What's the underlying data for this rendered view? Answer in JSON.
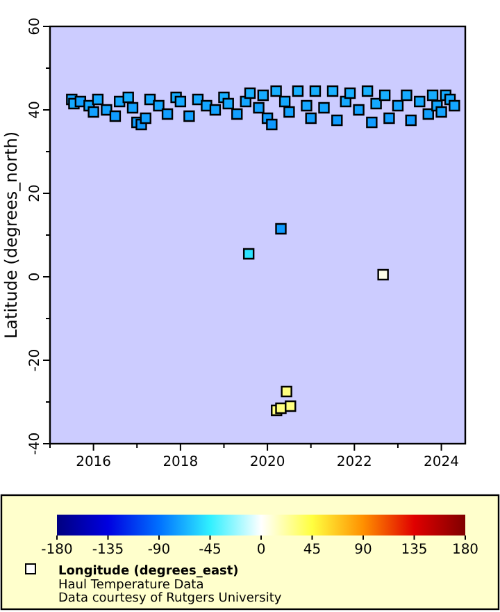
{
  "chart_data": {
    "type": "scatter",
    "ylabel": "Latitude (degrees_north)",
    "clabel": "Longitude (degrees_east)",
    "annotations": [
      "Haul Temperature Data",
      "Data courtesy of Rutgers University"
    ],
    "xlim": [
      2015,
      2024.55
    ],
    "xticks": [
      {
        "value": 2015,
        "label": null
      },
      2016,
      {
        "value": 2017,
        "label": null
      },
      2018,
      {
        "value": 2019,
        "label": null
      },
      2020,
      {
        "value": 2021,
        "label": null
      },
      2022,
      {
        "value": 2023,
        "label": null
      },
      2024
    ],
    "ylim": [
      -40,
      60
    ],
    "yticks": [
      -40,
      {
        "value": -30,
        "label": null
      },
      -20,
      {
        "value": -10,
        "label": null
      },
      0,
      {
        "value": 10,
        "label": null
      },
      20,
      {
        "value": 30,
        "label": null
      },
      40,
      {
        "value": 50,
        "label": null
      },
      60
    ],
    "clim": [
      -180,
      180
    ],
    "cticks": [
      -180,
      -135,
      -90,
      -45,
      0,
      45,
      90,
      135,
      180
    ],
    "marker": "square",
    "grid": false,
    "series": [
      {
        "x": [
          2015.5,
          2015.55,
          2015.7,
          2015.9,
          2016.0,
          2016.1,
          2016.3,
          2016.5,
          2016.6,
          2016.8,
          2016.9,
          2017.0,
          2017.1,
          2017.2,
          2017.3,
          2017.5,
          2017.7,
          2017.9,
          2018.0,
          2018.2,
          2018.4,
          2018.6,
          2018.8,
          2019.0,
          2019.1,
          2019.3,
          2019.5,
          2019.6,
          2019.8,
          2019.9,
          2020.0,
          2020.1,
          2020.2,
          2020.4,
          2020.5,
          2020.7,
          2020.9,
          2021.0,
          2021.1,
          2021.3,
          2021.5,
          2021.6,
          2021.8,
          2021.9,
          2022.1,
          2022.3,
          2022.4,
          2022.5,
          2022.7,
          2022.8,
          2023.0,
          2023.2,
          2023.3,
          2023.5,
          2023.7,
          2023.8,
          2023.9,
          2024.0,
          2024.1,
          2024.2,
          2024.3,
          2019.57,
          2020.31,
          2022.66,
          2020.44,
          2020.21,
          2020.31,
          2020.53
        ],
        "values": [
          42.5,
          41.5,
          42,
          41,
          39.5,
          42.5,
          40,
          38.5,
          42,
          43,
          40.5,
          37,
          36.5,
          38,
          42.5,
          41,
          39,
          43,
          42,
          38.5,
          42.5,
          41,
          40,
          43,
          41.5,
          39,
          42,
          44,
          40.5,
          43.5,
          38,
          36.5,
          44.5,
          42,
          39.5,
          44.5,
          41,
          38,
          44.5,
          40.5,
          44.5,
          37.5,
          42,
          44,
          40,
          44.5,
          37,
          41.5,
          43.5,
          38,
          41,
          43.5,
          37.5,
          42,
          39,
          43.5,
          41,
          39.5,
          43.5,
          42.5,
          41,
          5.5,
          11.5,
          0.5,
          -27.5,
          -32,
          -31.5,
          -31
        ],
        "cvalues": [
          -72,
          -70,
          -74,
          -71,
          -73,
          -70,
          -72,
          -75,
          -70,
          -68,
          -72,
          -74,
          -76,
          -73,
          -70,
          -71,
          -74,
          -69,
          -70,
          -73,
          -70,
          -71,
          -72,
          -68,
          -70,
          -73,
          -71,
          -67,
          -72,
          -69,
          -74,
          -76,
          -68,
          -70,
          -72,
          -67,
          -70,
          -74,
          -68,
          -71,
          -67,
          -75,
          -70,
          -68,
          -72,
          -67,
          -75,
          -70,
          -68,
          -74,
          -71,
          -69,
          -75,
          -70,
          -73,
          -69,
          -71,
          -72,
          -69,
          -70,
          -71,
          -50,
          -75,
          5,
          30,
          30,
          30,
          30
        ]
      }
    ]
  }
}
